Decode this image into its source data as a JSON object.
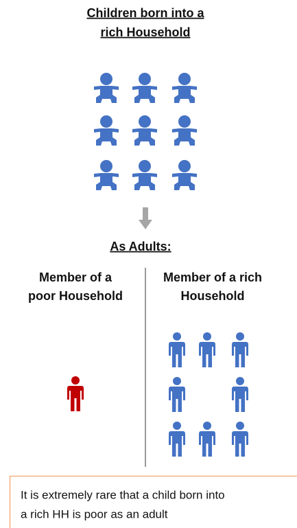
{
  "title": {
    "lines": [
      "Children born into a",
      "rich Household"
    ]
  },
  "subtitle": "As Adults:",
  "left_heading": {
    "lines": [
      "Member of a",
      "poor Household"
    ]
  },
  "right_heading": {
    "lines": [
      "Member of a rich",
      "Household"
    ]
  },
  "caption": {
    "lines": [
      "It is extremely rare that a child born into",
      "a rich HH is poor as an adult"
    ]
  }
}
